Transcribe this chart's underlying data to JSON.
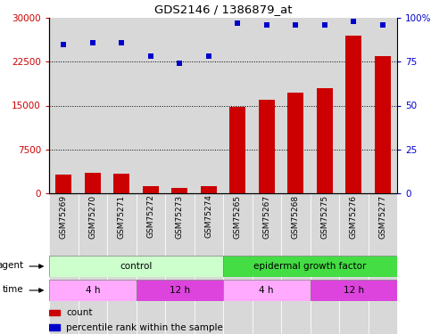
{
  "title": "GDS2146 / 1386879_at",
  "samples": [
    "GSM75269",
    "GSM75270",
    "GSM75271",
    "GSM75272",
    "GSM75273",
    "GSM75274",
    "GSM75265",
    "GSM75267",
    "GSM75268",
    "GSM75275",
    "GSM75276",
    "GSM75277"
  ],
  "bar_values": [
    3200,
    3500,
    3400,
    1200,
    900,
    1200,
    14800,
    16000,
    17200,
    18000,
    27000,
    23500
  ],
  "dot_values": [
    85,
    86,
    86,
    78,
    74,
    78,
    97,
    96,
    96,
    96,
    98,
    96
  ],
  "bar_color": "#cc0000",
  "dot_color": "#0000cc",
  "ylim_left": [
    0,
    30000
  ],
  "ylim_right": [
    0,
    100
  ],
  "yticks_left": [
    0,
    7500,
    15000,
    22500,
    30000
  ],
  "yticks_right": [
    0,
    25,
    50,
    75,
    100
  ],
  "agent_labels": [
    {
      "text": "control",
      "start": 0,
      "end": 6,
      "color": "#ccffcc"
    },
    {
      "text": "epidermal growth factor",
      "start": 6,
      "end": 12,
      "color": "#44dd44"
    }
  ],
  "time_labels": [
    {
      "text": "4 h",
      "start": 0,
      "end": 3,
      "color": "#ffaaff"
    },
    {
      "text": "12 h",
      "start": 3,
      "end": 6,
      "color": "#dd44dd"
    },
    {
      "text": "4 h",
      "start": 6,
      "end": 9,
      "color": "#ffaaff"
    },
    {
      "text": "12 h",
      "start": 9,
      "end": 12,
      "color": "#dd44dd"
    }
  ],
  "legend_count_color": "#cc0000",
  "legend_dot_color": "#0000cc",
  "plot_bg_color": "#d8d8d8",
  "tick_bg_color": "#d8d8d8"
}
